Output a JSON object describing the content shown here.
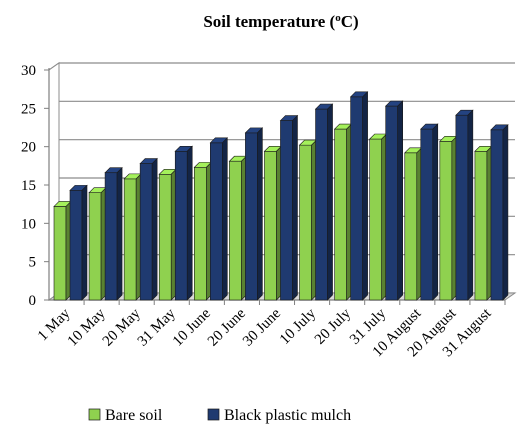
{
  "chart_data": {
    "type": "bar",
    "style": "3d-clustered-column",
    "title": {
      "main": "Soil temperature (",
      "sup": "o",
      "end": "C)"
    },
    "categories": [
      "1 May",
      "10 May",
      "20 May",
      "31 May",
      "10 June",
      "20 June",
      "30 June",
      "10 July",
      "20 July",
      "31 July",
      "10 August",
      "20 August",
      "31 August"
    ],
    "series": [
      {
        "name": "Bare soil",
        "color": "#8fd14f",
        "values": [
          12.2,
          14.0,
          15.8,
          16.4,
          17.3,
          18.1,
          19.4,
          20.2,
          22.3,
          21.0,
          19.2,
          20.7,
          19.4
        ]
      },
      {
        "name": "Black plastic mulch",
        "color": "#1f3a70",
        "values": [
          14.3,
          16.6,
          17.8,
          19.4,
          20.5,
          21.8,
          23.4,
          24.9,
          26.5,
          25.3,
          22.3,
          24.1,
          22.2
        ]
      }
    ],
    "ylim": [
      0,
      30
    ],
    "yticks": [
      0,
      5,
      10,
      15,
      20,
      25,
      30
    ],
    "grid": true,
    "legend_position": "bottom"
  }
}
